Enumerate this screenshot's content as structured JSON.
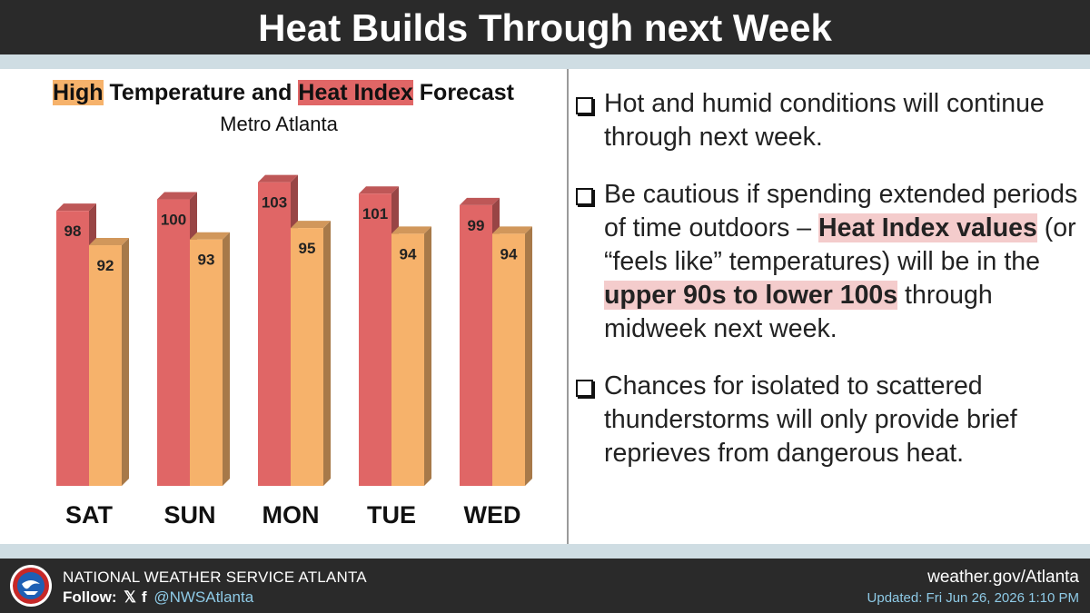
{
  "header": {
    "title": "Heat Builds Through next Week"
  },
  "chart_data": {
    "type": "bar",
    "title_parts": [
      "High",
      " Temperature and ",
      "Heat Index",
      " Forecast"
    ],
    "subtitle": "Metro Atlanta",
    "categories": [
      "SAT",
      "SUN",
      "MON",
      "TUE",
      "WED"
    ],
    "series": [
      {
        "name": "Heat Index",
        "color": "#e06666",
        "values": [
          98,
          100,
          103,
          101,
          99
        ]
      },
      {
        "name": "High",
        "color": "#f6b26b",
        "values": [
          92,
          93,
          95,
          94,
          94
        ]
      }
    ],
    "ylim": [
      50,
      105
    ],
    "grid": false
  },
  "bullets": [
    {
      "parts": [
        {
          "text": "Hot and humid conditions will continue through next week.",
          "hl": false
        }
      ]
    },
    {
      "parts": [
        {
          "text": "Be cautious if spending extended periods of time outdoors – ",
          "hl": false
        },
        {
          "text": "Heat Index values",
          "hl": true
        },
        {
          "text": " (or “feels like” temperatures) will be in the ",
          "hl": false
        },
        {
          "text": "upper 90s to lower 100s",
          "hl": true
        },
        {
          "text": " through midweek next week.",
          "hl": false
        }
      ]
    },
    {
      "parts": [
        {
          "text": "Chances for isolated to scattered thunderstorms will only provide brief reprieves from dangerous heat.",
          "hl": false
        }
      ]
    }
  ],
  "footer": {
    "org": "NATIONAL WEATHER SERVICE ATLANTA",
    "follow_label": "Follow:",
    "x_icon": "𝕏",
    "fb_icon": "f",
    "handle": "@NWSAtlanta",
    "site": "weather.gov/Atlanta",
    "updated": "Updated: Fri Jun 26, 2026 1:10 PM"
  }
}
